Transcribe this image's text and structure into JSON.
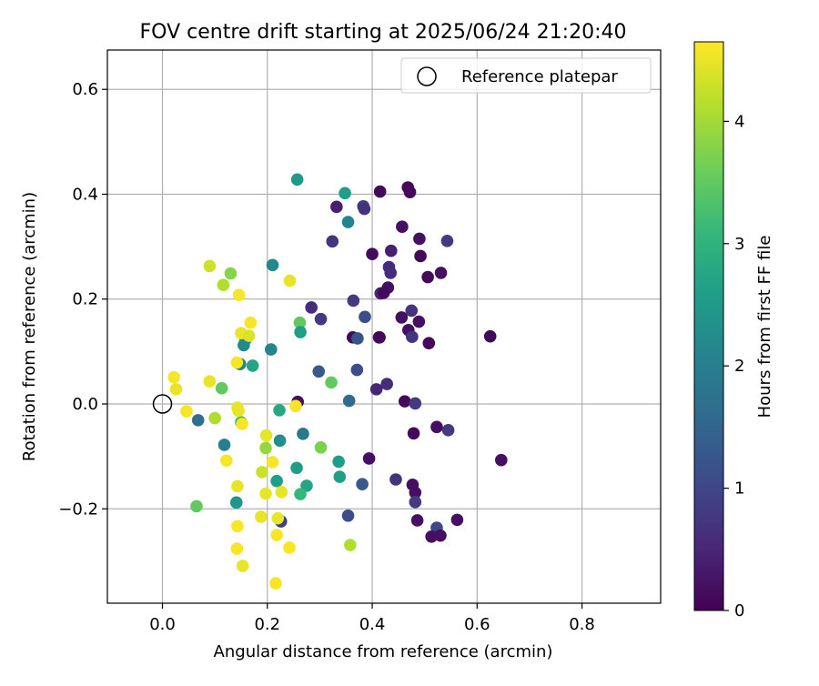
{
  "chart_data": {
    "type": "scatter",
    "title": "FOV centre drift starting at 2025/06/24 21:20:40",
    "xlabel": "Angular distance from reference (arcmin)",
    "ylabel": "Rotation from reference (arcmin)",
    "xlim": [
      -0.105,
      0.95
    ],
    "ylim": [
      -0.38,
      0.675
    ],
    "xticks": [
      0.0,
      0.2,
      0.4,
      0.6,
      0.8
    ],
    "xtick_labels": [
      "0.0",
      "0.2",
      "0.4",
      "0.6",
      "0.8"
    ],
    "yticks": [
      -0.2,
      0.0,
      0.2,
      0.4,
      0.6
    ],
    "ytick_labels": [
      "−0.2",
      "0.0",
      "0.2",
      "0.4",
      "0.6"
    ],
    "grid": true,
    "legend": {
      "position": "top-right",
      "label": "Reference platepar"
    },
    "reference_point": {
      "x": 0.0,
      "y": 0.0
    },
    "colorbar": {
      "label": "Hours from first FF file",
      "range": [
        0,
        4.65
      ],
      "ticks": [
        0,
        1,
        2,
        3,
        4
      ],
      "tick_labels": [
        "0",
        "1",
        "2",
        "3",
        "4"
      ],
      "colormap": "viridis",
      "stops": [
        "#440154",
        "#482878",
        "#3e4989",
        "#31688e",
        "#26828e",
        "#1f9e89",
        "#35b779",
        "#6ece58",
        "#b5de2b",
        "#fde725"
      ]
    },
    "series": [
      {
        "color_key": "Hours from first FF file",
        "points": [
          {
            "x": 0.415,
            "y": 0.405,
            "c": 0.1
          },
          {
            "x": 0.468,
            "y": 0.413,
            "c": 0.1
          },
          {
            "x": 0.472,
            "y": 0.404,
            "c": 0.1
          },
          {
            "x": 0.332,
            "y": 0.376,
            "c": 0.4
          },
          {
            "x": 0.383,
            "y": 0.377,
            "c": 0.8
          },
          {
            "x": 0.385,
            "y": 0.372,
            "c": 0.7
          },
          {
            "x": 0.457,
            "y": 0.338,
            "c": 0.2
          },
          {
            "x": 0.49,
            "y": 0.315,
            "c": 0.2
          },
          {
            "x": 0.324,
            "y": 0.31,
            "c": 0.7
          },
          {
            "x": 0.543,
            "y": 0.311,
            "c": 0.8
          },
          {
            "x": 0.436,
            "y": 0.292,
            "c": 0.4
          },
          {
            "x": 0.4,
            "y": 0.286,
            "c": 0.1
          },
          {
            "x": 0.492,
            "y": 0.282,
            "c": 0.1
          },
          {
            "x": 0.432,
            "y": 0.261,
            "c": 0.6
          },
          {
            "x": 0.435,
            "y": 0.25,
            "c": 0.6
          },
          {
            "x": 0.531,
            "y": 0.25,
            "c": 0.2
          },
          {
            "x": 0.506,
            "y": 0.242,
            "c": 0.1
          },
          {
            "x": 0.43,
            "y": 0.222,
            "c": 0.2
          },
          {
            "x": 0.416,
            "y": 0.211,
            "c": 0.5
          },
          {
            "x": 0.422,
            "y": 0.212,
            "c": 0.1
          },
          {
            "x": 0.364,
            "y": 0.197,
            "c": 0.8
          },
          {
            "x": 0.284,
            "y": 0.184,
            "c": 0.6
          },
          {
            "x": 0.475,
            "y": 0.178,
            "c": 0.7
          },
          {
            "x": 0.456,
            "y": 0.165,
            "c": 0.2
          },
          {
            "x": 0.386,
            "y": 0.166,
            "c": 1.1
          },
          {
            "x": 0.302,
            "y": 0.162,
            "c": 0.8
          },
          {
            "x": 0.489,
            "y": 0.157,
            "c": 0.2
          },
          {
            "x": 0.469,
            "y": 0.141,
            "c": 0.2
          },
          {
            "x": 0.476,
            "y": 0.128,
            "c": 0.7
          },
          {
            "x": 0.363,
            "y": 0.127,
            "c": 0.1
          },
          {
            "x": 0.372,
            "y": 0.125,
            "c": 1.2
          },
          {
            "x": 0.413,
            "y": 0.127,
            "c": 0.1
          },
          {
            "x": 0.414,
            "y": 0.127,
            "c": 0.1
          },
          {
            "x": 0.508,
            "y": 0.116,
            "c": 0.1
          },
          {
            "x": 0.625,
            "y": 0.129,
            "c": 0.1
          },
          {
            "x": 0.371,
            "y": 0.065,
            "c": 1.1
          },
          {
            "x": 0.298,
            "y": 0.062,
            "c": 1.3
          },
          {
            "x": 0.428,
            "y": 0.038,
            "c": 0.6
          },
          {
            "x": 0.408,
            "y": 0.028,
            "c": 0.5
          },
          {
            "x": 0.462,
            "y": 0.005,
            "c": 0.1
          },
          {
            "x": 0.482,
            "y": 0.001,
            "c": 0.8
          },
          {
            "x": 0.356,
            "y": 0.006,
            "c": 1.6
          },
          {
            "x": 0.258,
            "y": 0.004,
            "c": 0.2
          },
          {
            "x": 0.523,
            "y": -0.044,
            "c": 0.2
          },
          {
            "x": 0.545,
            "y": -0.05,
            "c": 0.8
          },
          {
            "x": 0.479,
            "y": -0.056,
            "c": 0.1
          },
          {
            "x": 0.646,
            "y": -0.107,
            "c": 0.2
          },
          {
            "x": 0.394,
            "y": -0.104,
            "c": 0.2
          },
          {
            "x": 0.445,
            "y": -0.144,
            "c": 0.7
          },
          {
            "x": 0.477,
            "y": -0.154,
            "c": 0.2
          },
          {
            "x": 0.381,
            "y": -0.153,
            "c": 1.3
          },
          {
            "x": 0.482,
            "y": -0.169,
            "c": 0.2
          },
          {
            "x": 0.482,
            "y": -0.187,
            "c": 0.8
          },
          {
            "x": 0.354,
            "y": -0.213,
            "c": 1.1
          },
          {
            "x": 0.486,
            "y": -0.222,
            "c": 0.2
          },
          {
            "x": 0.562,
            "y": -0.221,
            "c": 0.2
          },
          {
            "x": 0.523,
            "y": -0.236,
            "c": 1.0
          },
          {
            "x": 0.513,
            "y": -0.253,
            "c": 0.2
          },
          {
            "x": 0.53,
            "y": -0.251,
            "c": 0.2
          },
          {
            "x": 0.226,
            "y": -0.224,
            "c": 0.9
          },
          {
            "x": 0.257,
            "y": 0.428,
            "c": 2.5
          },
          {
            "x": 0.348,
            "y": 0.402,
            "c": 2.6
          },
          {
            "x": 0.354,
            "y": 0.347,
            "c": 2.1
          },
          {
            "x": 0.21,
            "y": 0.265,
            "c": 2.2
          },
          {
            "x": 0.262,
            "y": 0.155,
            "c": 3.5
          },
          {
            "x": 0.263,
            "y": 0.137,
            "c": 2.6
          },
          {
            "x": 0.158,
            "y": 0.122,
            "c": 2.5
          },
          {
            "x": 0.155,
            "y": 0.112,
            "c": 2.2
          },
          {
            "x": 0.207,
            "y": 0.104,
            "c": 2.1
          },
          {
            "x": 0.148,
            "y": 0.076,
            "c": 2.1
          },
          {
            "x": 0.172,
            "y": 0.073,
            "c": 2.7
          },
          {
            "x": 0.322,
            "y": 0.041,
            "c": 3.5
          },
          {
            "x": 0.113,
            "y": 0.03,
            "c": 3.5
          },
          {
            "x": 0.068,
            "y": -0.031,
            "c": 1.7
          },
          {
            "x": 0.223,
            "y": -0.012,
            "c": 2.8
          },
          {
            "x": 0.15,
            "y": -0.035,
            "c": 3.1
          },
          {
            "x": 0.268,
            "y": -0.057,
            "c": 1.9
          },
          {
            "x": 0.224,
            "y": -0.07,
            "c": 2.3
          },
          {
            "x": 0.118,
            "y": -0.078,
            "c": 2.0
          },
          {
            "x": 0.302,
            "y": -0.083,
            "c": 3.7
          },
          {
            "x": 0.197,
            "y": -0.084,
            "c": 3.9
          },
          {
            "x": 0.336,
            "y": -0.11,
            "c": 2.6
          },
          {
            "x": 0.256,
            "y": -0.122,
            "c": 2.6
          },
          {
            "x": 0.338,
            "y": -0.139,
            "c": 2.6
          },
          {
            "x": 0.218,
            "y": -0.147,
            "c": 2.6
          },
          {
            "x": 0.275,
            "y": -0.156,
            "c": 2.7
          },
          {
            "x": 0.263,
            "y": -0.172,
            "c": 3.1
          },
          {
            "x": 0.141,
            "y": -0.188,
            "c": 2.4
          },
          {
            "x": 0.065,
            "y": -0.195,
            "c": 3.5
          },
          {
            "x": 0.358,
            "y": -0.269,
            "c": 4.1
          },
          {
            "x": 0.13,
            "y": 0.249,
            "c": 3.8
          },
          {
            "x": 0.116,
            "y": 0.227,
            "c": 4.1
          },
          {
            "x": 0.1,
            "y": -0.027,
            "c": 4.1
          },
          {
            "x": 0.19,
            "y": -0.13,
            "c": 4.3
          },
          {
            "x": 0.09,
            "y": 0.263,
            "c": 4.3
          },
          {
            "x": 0.243,
            "y": 0.235,
            "c": 4.5
          },
          {
            "x": 0.146,
            "y": 0.208,
            "c": 4.6
          },
          {
            "x": 0.168,
            "y": 0.155,
            "c": 4.6
          },
          {
            "x": 0.15,
            "y": 0.135,
            "c": 4.5
          },
          {
            "x": 0.165,
            "y": 0.13,
            "c": 4.4
          },
          {
            "x": 0.142,
            "y": 0.079,
            "c": 4.6
          },
          {
            "x": 0.022,
            "y": 0.051,
            "c": 4.6
          },
          {
            "x": 0.09,
            "y": 0.043,
            "c": 4.5
          },
          {
            "x": 0.026,
            "y": 0.028,
            "c": 4.5
          },
          {
            "x": 0.143,
            "y": -0.007,
            "c": 4.5
          },
          {
            "x": 0.145,
            "y": -0.013,
            "c": 4.5
          },
          {
            "x": 0.254,
            "y": -0.004,
            "c": 4.6
          },
          {
            "x": 0.046,
            "y": -0.014,
            "c": 4.6
          },
          {
            "x": 0.152,
            "y": -0.038,
            "c": 4.6
          },
          {
            "x": 0.198,
            "y": -0.06,
            "c": 4.5
          },
          {
            "x": 0.21,
            "y": -0.111,
            "c": 4.6
          },
          {
            "x": 0.122,
            "y": -0.108,
            "c": 4.6
          },
          {
            "x": 0.143,
            "y": -0.157,
            "c": 4.5
          },
          {
            "x": 0.227,
            "y": -0.168,
            "c": 4.5
          },
          {
            "x": 0.197,
            "y": -0.171,
            "c": 4.5
          },
          {
            "x": 0.188,
            "y": -0.215,
            "c": 4.5
          },
          {
            "x": 0.22,
            "y": -0.218,
            "c": 4.5
          },
          {
            "x": 0.143,
            "y": -0.233,
            "c": 4.6
          },
          {
            "x": 0.218,
            "y": -0.25,
            "c": 4.6
          },
          {
            "x": 0.142,
            "y": -0.276,
            "c": 4.6
          },
          {
            "x": 0.242,
            "y": -0.274,
            "c": 4.6
          },
          {
            "x": 0.153,
            "y": -0.309,
            "c": 4.5
          },
          {
            "x": 0.216,
            "y": -0.342,
            "c": 4.6
          }
        ]
      }
    ]
  }
}
